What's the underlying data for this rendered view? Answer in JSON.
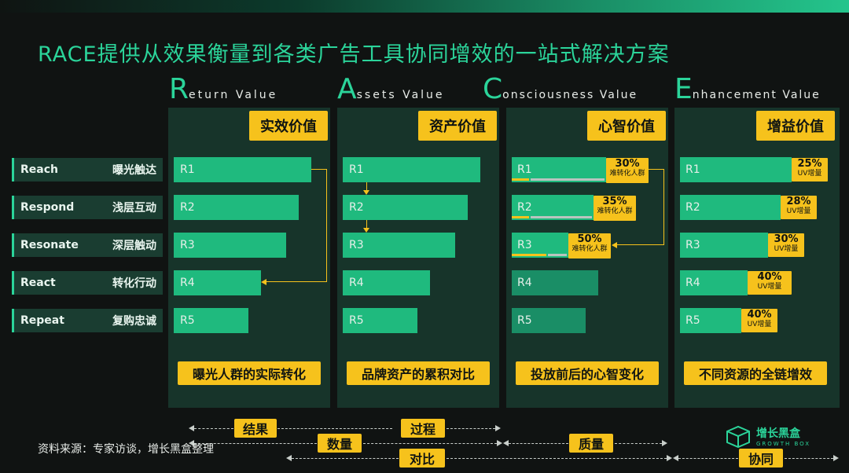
{
  "title": "RACE提供从效果衡量到各类广告工具协同增效的一站式解决方案",
  "columns": [
    {
      "letter": "R",
      "rest": "eturn Value",
      "badge": "实效价值",
      "footer": "曝光人群的实际转化"
    },
    {
      "letter": "A",
      "rest": "ssets Value",
      "badge": "资产价值",
      "footer": "品牌资产的累积对比"
    },
    {
      "letter": "C",
      "rest": "onsciousness Value",
      "badge": "心智价值",
      "footer": "投放前后的心智变化"
    },
    {
      "letter": "E",
      "rest": "nhancement Value",
      "badge": "增益价值",
      "footer": "不同资源的全链增效"
    }
  ],
  "rows": [
    {
      "en": "Reach",
      "cn": "曝光触达",
      "code": "R1"
    },
    {
      "en": "Respond",
      "cn": "浅层互动",
      "code": "R2"
    },
    {
      "en": "Resonate",
      "cn": "深层触动",
      "code": "R3"
    },
    {
      "en": "React",
      "cn": "转化行动",
      "code": "R4"
    },
    {
      "en": "Repeat",
      "cn": "复购忠诚",
      "code": "R5"
    }
  ],
  "consciousness_tags": [
    {
      "pct": "30%",
      "sub": "难转化人群"
    },
    {
      "pct": "35%",
      "sub": "难转化人群"
    },
    {
      "pct": "50%",
      "sub": "难转化人群"
    }
  ],
  "enhancement_tags": [
    {
      "pct": "25%",
      "sub": "UV增量"
    },
    {
      "pct": "28%",
      "sub": "UV增量"
    },
    {
      "pct": "30%",
      "sub": "UV增量"
    },
    {
      "pct": "40%",
      "sub": "UV增量"
    },
    {
      "pct": "40%",
      "sub": "UV增量"
    }
  ],
  "bottom_tags": {
    "result": "结果",
    "process": "过程",
    "quantity": "数量",
    "quality": "质量",
    "compare": "对比",
    "synergy": "协同"
  },
  "source": "资料来源：专家访谈，增长黑盒整理",
  "logo": {
    "name": "增长黑盒",
    "sub": "GROWTH BOX"
  },
  "colors": {
    "accent": "#2bd49a",
    "highlight": "#f6c21c",
    "bar": "#1fba7e",
    "panel": "#17342a"
  }
}
